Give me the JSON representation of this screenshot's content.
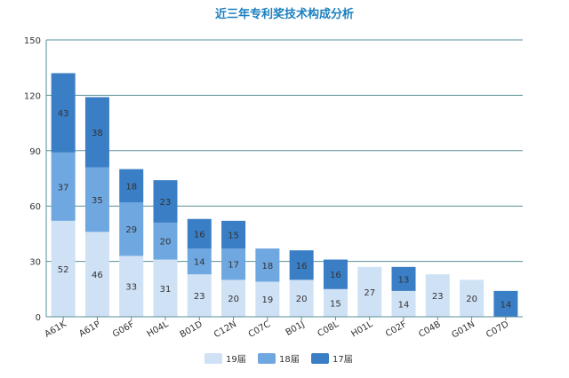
{
  "chart_data": {
    "type": "bar",
    "stacked": true,
    "title": "近三年专利奖技术构成分析",
    "categories": [
      "A61K",
      "A61P",
      "G06F",
      "H04L",
      "B01D",
      "C12N",
      "C07C",
      "B01J",
      "C08L",
      "H01L",
      "C02F",
      "C04B",
      "G01N",
      "C07D"
    ],
    "series": [
      {
        "name": "19届",
        "color": "#cfe1f5",
        "values": [
          52,
          46,
          33,
          31,
          23,
          20,
          19,
          20,
          15,
          27,
          14,
          23,
          20,
          0
        ]
      },
      {
        "name": "18届",
        "color": "#6fa7e0",
        "values": [
          37,
          35,
          29,
          20,
          14,
          17,
          18,
          0,
          0,
          0,
          0,
          0,
          0,
          0
        ]
      },
      {
        "name": "17届",
        "color": "#3a7ec6",
        "values": [
          43,
          38,
          18,
          23,
          16,
          15,
          0,
          16,
          16,
          0,
          13,
          0,
          0,
          14
        ]
      }
    ],
    "yticks": [
      0,
      30,
      60,
      90,
      120,
      150
    ],
    "ylim": [
      0,
      150
    ],
    "grid": true,
    "legend_position": "bottom"
  }
}
